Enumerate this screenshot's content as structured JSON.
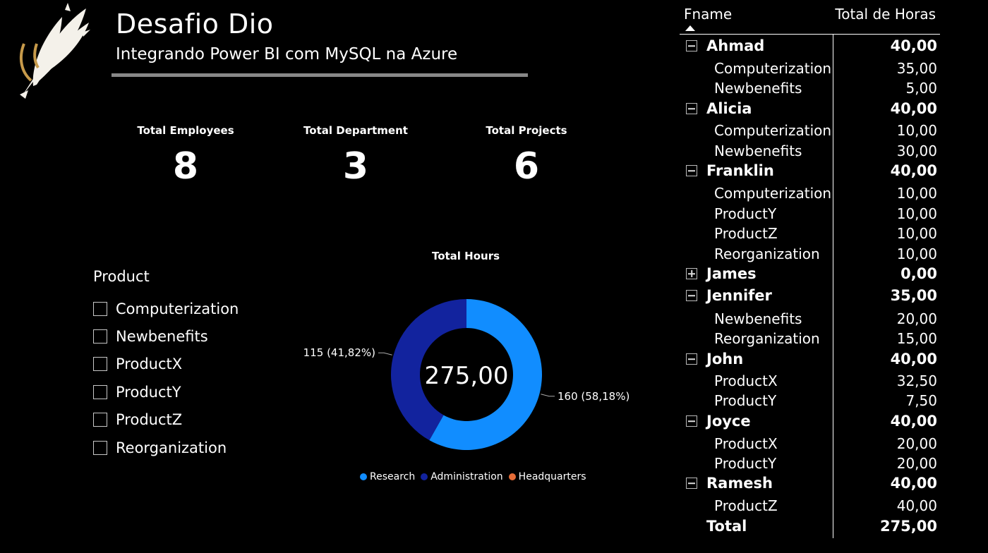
{
  "header": {
    "title": "Desafio Dio",
    "subtitle": "Integrando Power BI com MySQL na Azure"
  },
  "kpis": [
    {
      "label": "Total Employees",
      "value": "8"
    },
    {
      "label": "Total Department",
      "value": "3"
    },
    {
      "label": "Total Projects",
      "value": "6"
    }
  ],
  "slicer": {
    "title": "Product",
    "items": [
      "Computerization",
      "Newbenefits",
      "ProductX",
      "ProductY",
      "ProductZ",
      "Reorganization"
    ]
  },
  "chart_data": {
    "type": "pie",
    "title": "Total Hours",
    "center_label": "275,00",
    "categories": [
      "Research",
      "Administration",
      "Headquarters"
    ],
    "values": [
      160,
      115,
      0
    ],
    "colors": [
      "#118DFF",
      "#12239E",
      "#E66C37"
    ],
    "data_labels": [
      "160 (58,18%)",
      "115 (41,82%)",
      ""
    ],
    "legend_position": "bottom"
  },
  "matrix": {
    "columns": [
      "Fname",
      "Total de Horas"
    ],
    "rows": [
      {
        "type": "group",
        "expanded": true,
        "name": "Ahmad",
        "value": "40,00"
      },
      {
        "type": "child",
        "name": "Computerization",
        "value": "35,00"
      },
      {
        "type": "child",
        "name": "Newbenefits",
        "value": "5,00"
      },
      {
        "type": "group",
        "expanded": true,
        "name": "Alicia",
        "value": "40,00"
      },
      {
        "type": "child",
        "name": "Computerization",
        "value": "10,00"
      },
      {
        "type": "child",
        "name": "Newbenefits",
        "value": "30,00"
      },
      {
        "type": "group",
        "expanded": true,
        "name": "Franklin",
        "value": "40,00"
      },
      {
        "type": "child",
        "name": "Computerization",
        "value": "10,00"
      },
      {
        "type": "child",
        "name": "ProductY",
        "value": "10,00"
      },
      {
        "type": "child",
        "name": "ProductZ",
        "value": "10,00"
      },
      {
        "type": "child",
        "name": "Reorganization",
        "value": "10,00"
      },
      {
        "type": "group",
        "expanded": false,
        "name": "James",
        "value": "0,00"
      },
      {
        "type": "group",
        "expanded": true,
        "name": "Jennifer",
        "value": "35,00"
      },
      {
        "type": "child",
        "name": "Newbenefits",
        "value": "20,00"
      },
      {
        "type": "child",
        "name": "Reorganization",
        "value": "15,00"
      },
      {
        "type": "group",
        "expanded": true,
        "name": "John",
        "value": "40,00"
      },
      {
        "type": "child",
        "name": "ProductX",
        "value": "32,50"
      },
      {
        "type": "child",
        "name": "ProductY",
        "value": "7,50"
      },
      {
        "type": "group",
        "expanded": true,
        "name": "Joyce",
        "value": "40,00"
      },
      {
        "type": "child",
        "name": "ProductX",
        "value": "20,00"
      },
      {
        "type": "child",
        "name": "ProductY",
        "value": "20,00"
      },
      {
        "type": "group",
        "expanded": true,
        "name": "Ramesh",
        "value": "40,00"
      },
      {
        "type": "child",
        "name": "ProductZ",
        "value": "40,00"
      }
    ],
    "total": {
      "name": "Total",
      "value": "275,00"
    }
  }
}
